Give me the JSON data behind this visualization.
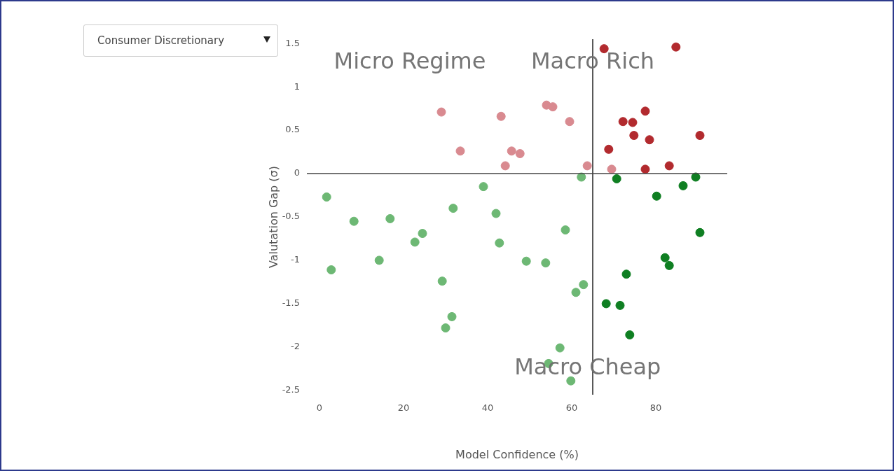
{
  "chart_data": {
    "type": "scatter",
    "xlabel": "Model Confidence (%)",
    "ylabel": "Valutation Gap (σ)",
    "xlim": [
      -3,
      97
    ],
    "xticks": [
      0,
      20,
      40,
      60,
      80
    ],
    "ylim": [
      -2.55,
      1.55
    ],
    "yticks": [
      -2.5,
      -2,
      -1.5,
      -1,
      -0.5,
      0,
      0.5,
      1,
      1.5
    ],
    "grid": false,
    "legend": false,
    "marker": "circle",
    "series": [
      {
        "color": "#d98a90",
        "x": [
          29,
          43.2,
          33.5,
          44.2,
          45.7,
          47.7,
          54,
          55.5,
          59.5,
          63.7,
          69.5
        ],
        "values": [
          0.71,
          0.66,
          0.26,
          0.09,
          0.26,
          0.23,
          0.79,
          0.77,
          0.6,
          0.09,
          0.05
        ]
      },
      {
        "color": "#b22a2e",
        "x": [
          67.7,
          84.8,
          77.5,
          74.5,
          72.2,
          74.8,
          78.5,
          90.5,
          68.8,
          77.5,
          83.2
        ],
        "values": [
          1.44,
          1.46,
          0.72,
          0.59,
          0.6,
          0.44,
          0.39,
          0.44,
          0.28,
          0.05,
          0.09
        ]
      },
      {
        "color": "#6db874",
        "x": [
          1.7,
          8.2,
          16.8,
          2.8,
          14.2,
          22.7,
          24.5,
          31.8,
          39,
          42,
          42.8,
          29.2,
          31.5,
          30,
          49.2,
          53.8,
          58.5,
          61,
          62.8,
          57.2,
          54.5,
          59.8,
          62.3
        ],
        "values": [
          -0.27,
          -0.55,
          -0.52,
          -1.11,
          -1,
          -0.79,
          -0.69,
          -0.4,
          -0.15,
          -0.46,
          -0.8,
          -1.24,
          -1.65,
          -1.78,
          -1.01,
          -1.03,
          -0.65,
          -1.37,
          -1.28,
          -2.01,
          -2.19,
          -2.39,
          -0.04
        ]
      },
      {
        "color": "#0f7f22",
        "x": [
          70.7,
          86.5,
          89.5,
          80.2,
          90.5,
          83.2,
          82.2,
          73,
          68.2,
          71.5,
          73.8
        ],
        "values": [
          -0.06,
          -0.14,
          -0.04,
          -0.26,
          -0.68,
          -1.06,
          -0.97,
          -1.16,
          -1.5,
          -1.52,
          -1.86
        ]
      }
    ],
    "ref_lines": [
      {
        "axis": "x",
        "value": 65,
        "color": "#222222"
      },
      {
        "axis": "y",
        "value": 0,
        "color": "#444444"
      }
    ],
    "annotations": [
      "Micro Regime",
      "Macro Rich",
      "Macro Cheap",
      "Consumer Discretionary"
    ]
  }
}
